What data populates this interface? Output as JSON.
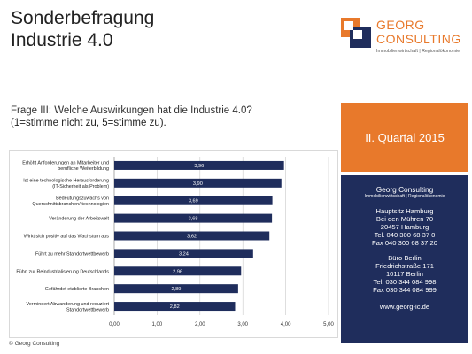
{
  "title": {
    "line1": "Sonderbefragung",
    "line2": "Industrie 4.0"
  },
  "logo": {
    "name_line1": "GEORG",
    "name_line2": "CONSULTING",
    "subtitle": "Immobilienwirtschaft | Regionalökonomie",
    "colors": {
      "orange": "#e8792b",
      "navy": "#1f2d5c"
    }
  },
  "question": {
    "line1": "Frage III: Welche Auswirkungen hat die Industrie 4.0?",
    "line2": "(1=stimme nicht zu, 5=stimme zu)."
  },
  "quarter": "II. Quartal 2015",
  "contact": {
    "company": "Georg Consulting",
    "company_sub": "Immobilienwirtschaft | Regionalökonomie",
    "hq_title": "Hauptsitz Hamburg",
    "hq_street": "Bei den Mühren 70",
    "hq_city": "20457 Hamburg",
    "hq_tel": "Tel. 040 300 68 37 0",
    "hq_fax": "Fax 040 300 68 37 20",
    "berlin_title": "Büro Berlin",
    "berlin_street": "Friedrichstraße 171",
    "berlin_city": "10117 Berlin",
    "berlin_tel": "Tel. 030 344 084 998",
    "berlin_fax": "Fax 030 344 084 999",
    "website": "www.georg-ic.de"
  },
  "copyright": "© Georg Consulting",
  "chart_data": {
    "type": "bar",
    "orientation": "horizontal",
    "bar_color": "#1f2d5c",
    "categories": [
      [
        "Erhöht Anforderungen an Mitarbeiter und",
        "berufliche Weiterbildung"
      ],
      [
        "Ist eine technologische Herausforderung",
        "(IT-Sicherheit als Problem)"
      ],
      [
        "Bedeutungszuwachs von",
        "Querschnittsbranchen/-technologien"
      ],
      [
        "Veränderung der Arbeitswelt"
      ],
      [
        "Wirkt sich positiv auf das Wachstum aus"
      ],
      [
        "Führt zu mehr Standortwettbewerb"
      ],
      [
        "Führt zur Reindustrialisierung Deutschlands"
      ],
      [
        "Gefährdet etablierte Branchen"
      ],
      [
        "Vermindert Abwanderung und reduziert",
        "Standortwettbewerb"
      ]
    ],
    "values": [
      3.96,
      3.9,
      3.69,
      3.68,
      3.62,
      3.24,
      2.96,
      2.89,
      2.82
    ],
    "value_labels": [
      "3,96",
      "3,90",
      "3,69",
      "3,68",
      "3,62",
      "3,24",
      "2,96",
      "2,89",
      "2,82"
    ],
    "xlim": [
      0,
      5
    ],
    "xticks": [
      "0,00",
      "1,00",
      "2,00",
      "3,00",
      "4,00",
      "5,00"
    ],
    "grid": true
  }
}
